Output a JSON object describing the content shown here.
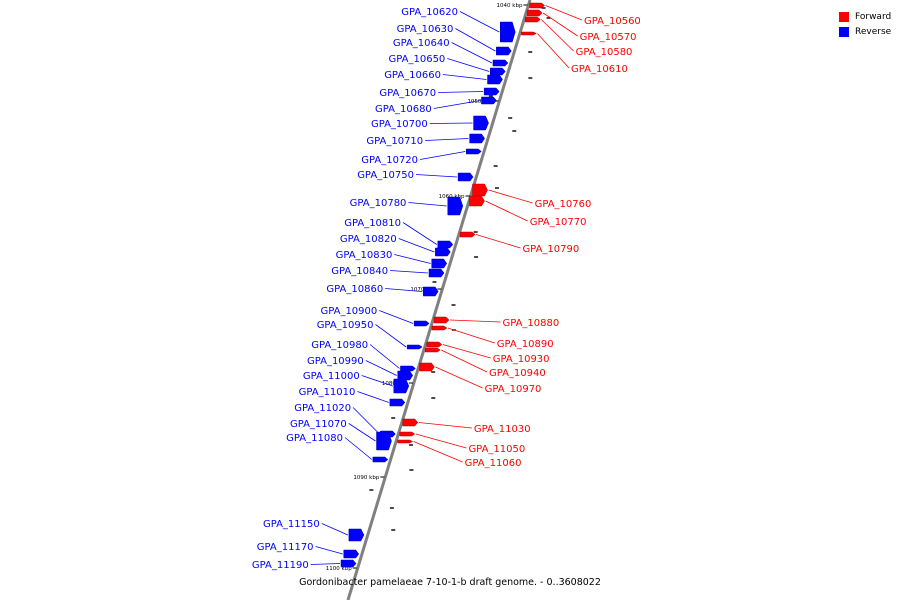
{
  "caption": "Gordonibacter pamelaeae 7-10-1-b draft genome. - 0..3608022",
  "legend": [
    {
      "label": "Forward",
      "color": "#ff0000"
    },
    {
      "label": "Reverse",
      "color": "#0000ff"
    }
  ],
  "colors": {
    "forward": "#ff0000",
    "reverse": "#0000ff",
    "axis": "#808080"
  },
  "ticks": [
    "1040 kbp",
    "1050 kbp",
    "1060 kbp",
    "1070 kbp",
    "1080 kbp",
    "1090 kbp",
    "1100 kbp"
  ],
  "reverse_genes": [
    "GPA_10620",
    "GPA_10630",
    "GPA_10640",
    "GPA_10650",
    "GPA_10660",
    "GPA_10670",
    "GPA_10680",
    "GPA_10700",
    "GPA_10710",
    "GPA_10720",
    "GPA_10750",
    "GPA_10780",
    "GPA_10810",
    "GPA_10820",
    "GPA_10830",
    "GPA_10840",
    "GPA_10860",
    "GPA_10900",
    "GPA_10950",
    "GPA_10980",
    "GPA_10990",
    "GPA_11000",
    "GPA_11010",
    "GPA_11020",
    "GPA_11070",
    "GPA_11080",
    "GPA_11150",
    "GPA_11170",
    "GPA_11190"
  ],
  "forward_genes": [
    "GPA_10560",
    "GPA_10570",
    "GPA_10580",
    "GPA_10610",
    "GPA_10760",
    "GPA_10770",
    "GPA_10790",
    "GPA_10880",
    "GPA_10890",
    "GPA_10930",
    "GPA_10940",
    "GPA_10970",
    "GPA_11030",
    "GPA_11050",
    "GPA_11060"
  ]
}
